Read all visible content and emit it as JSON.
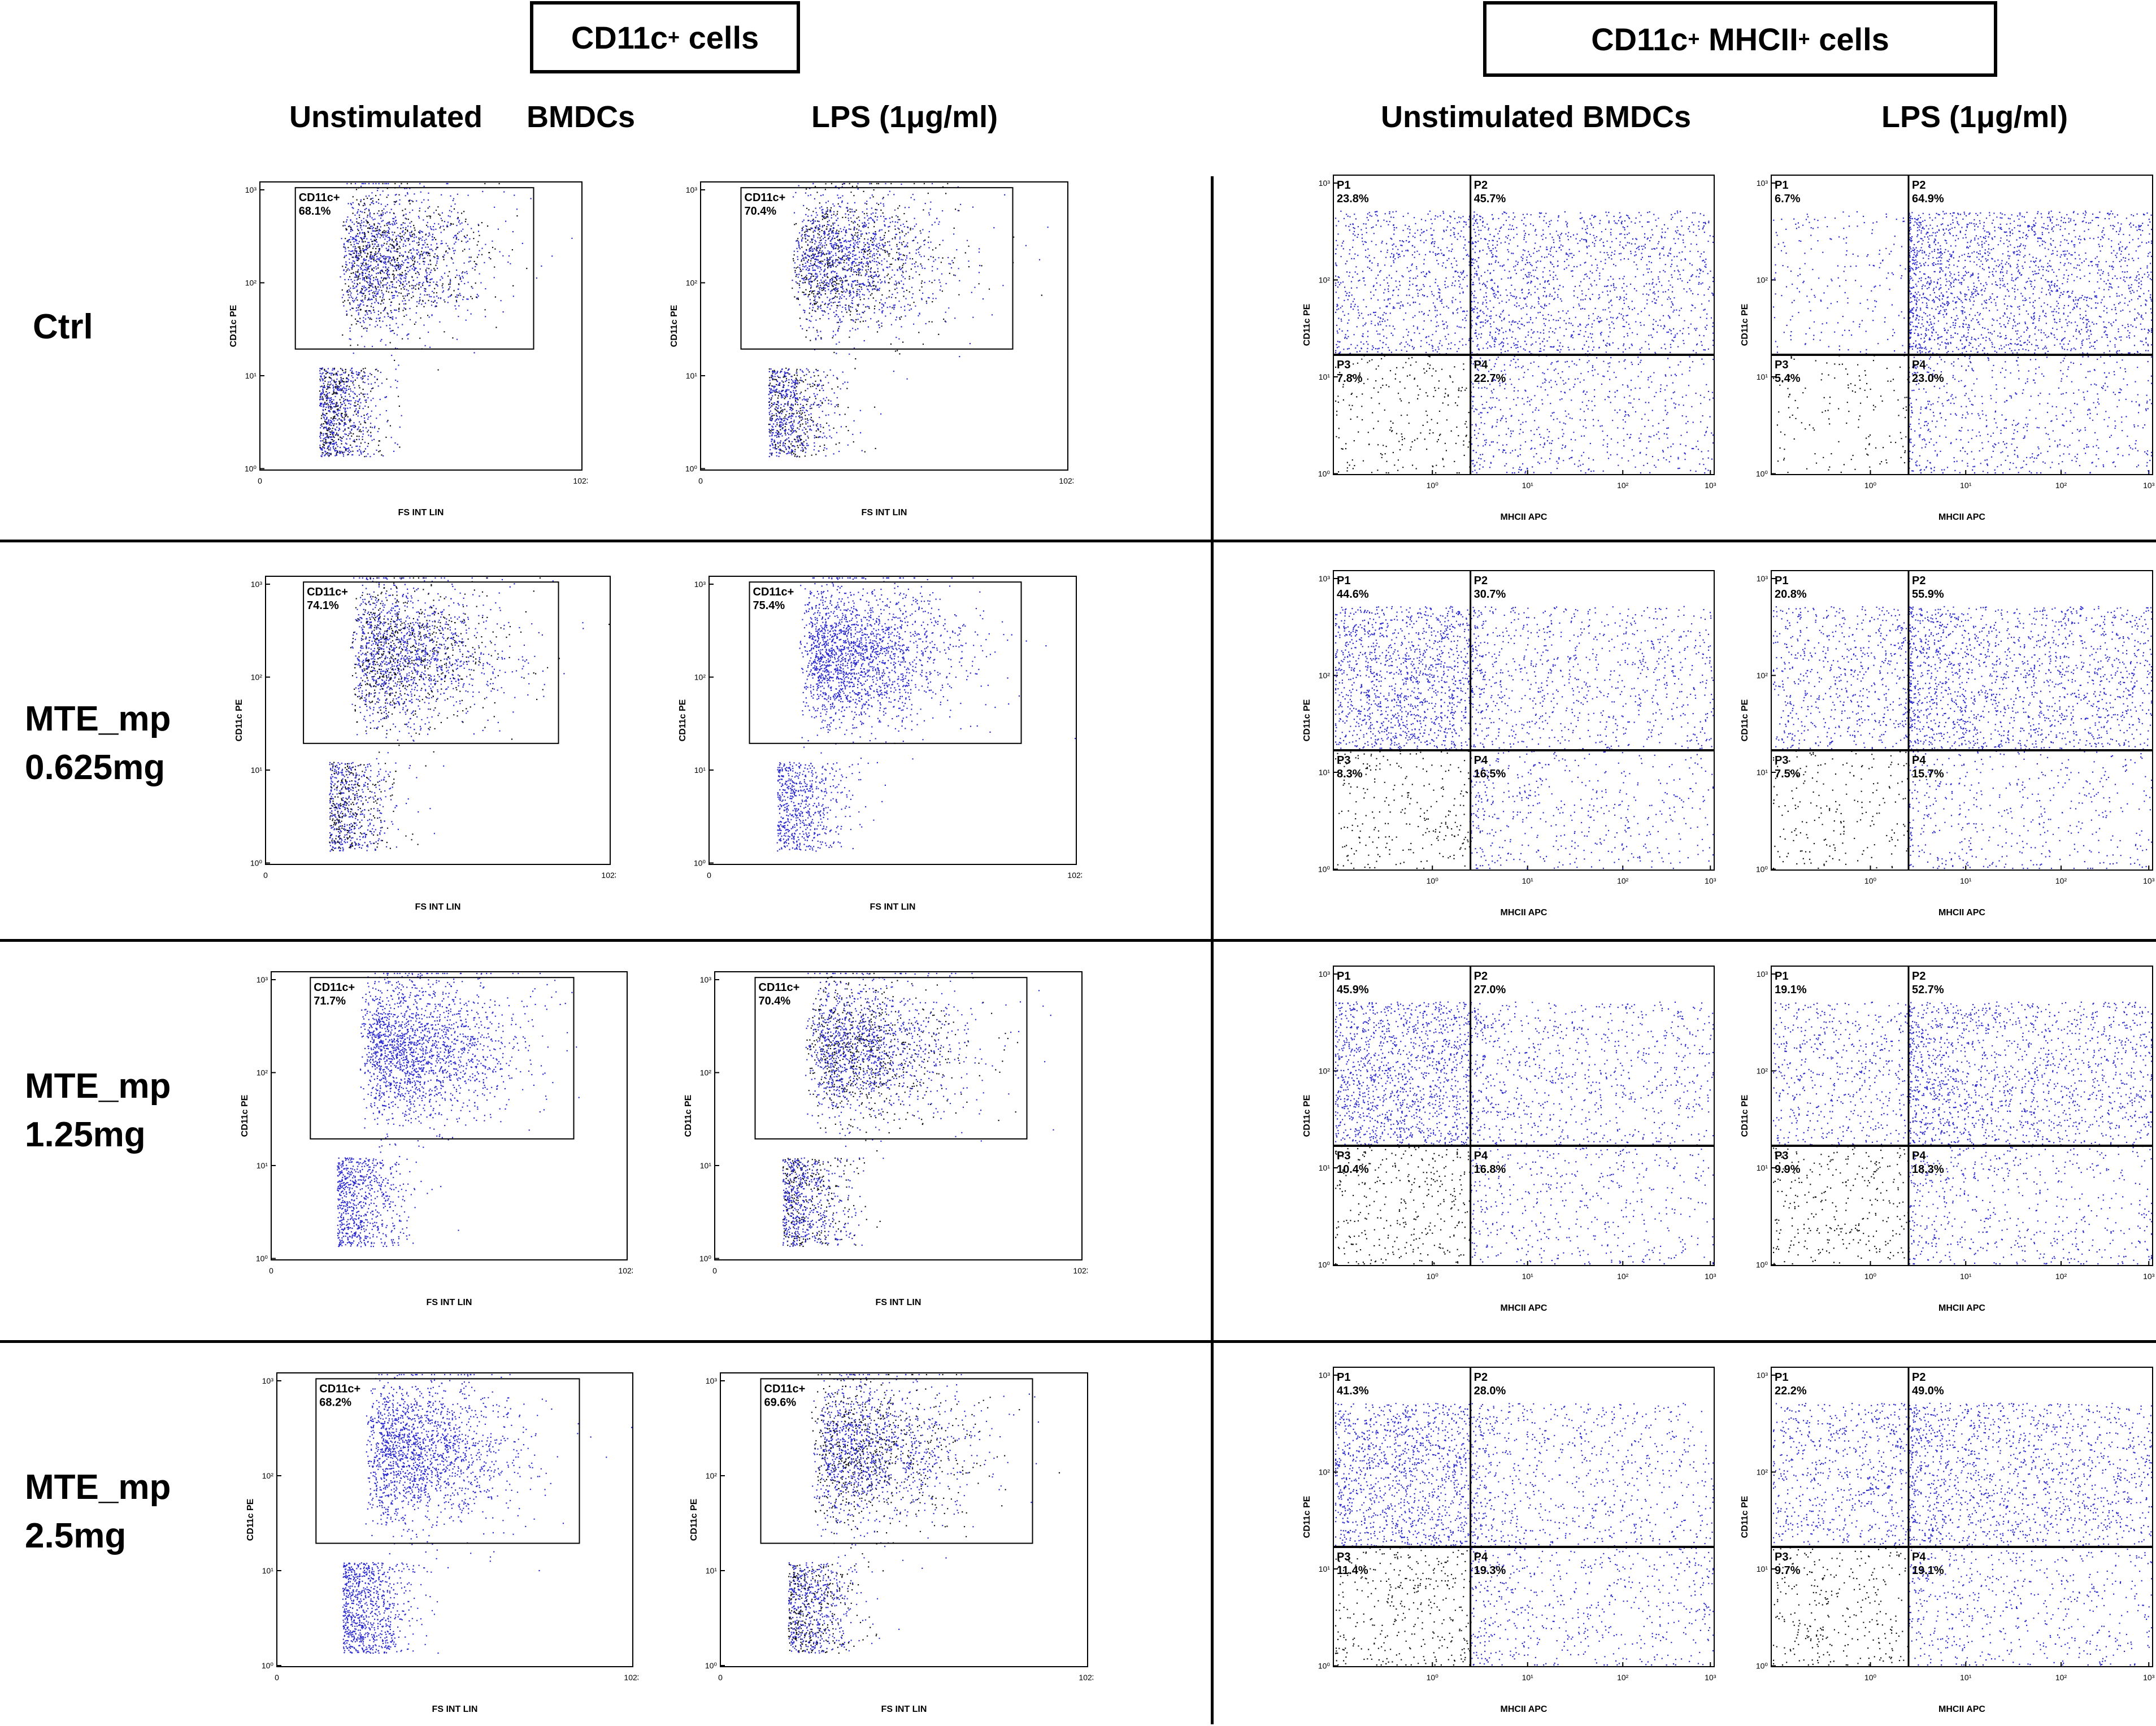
{
  "headers": {
    "left": {
      "text": "CD11c",
      "sup": "+",
      "suffix": " cells"
    },
    "right": {
      "text": "CD11c",
      "sup": "+",
      "middle": " MHCII",
      "sup2": "+",
      "suffix": " cells"
    }
  },
  "column_labels": {
    "unstim_left_a": "Unstimulated",
    "unstim_left_b": "BMDCs",
    "lps_left": "LPS (1μg/ml)",
    "unstim_right": "Unstimulated BMDCs",
    "lps_right": "LPS (1μg/ml)"
  },
  "rows": [
    {
      "line1": "Ctrl",
      "line2": ""
    },
    {
      "line1": "MTE_mp",
      "line2": "0.625mg"
    },
    {
      "line1": "MTE_mp",
      "line2": "1.25mg"
    },
    {
      "line1": "MTE_mp",
      "line2": "2.5mg"
    }
  ],
  "colors": {
    "gated": "#2a2ad0",
    "ungated": "#111111",
    "frame": "#000000"
  },
  "chart_data": [
    {
      "type": "scatter",
      "plot_kind": "gate",
      "xlabel": "FS INT LIN",
      "ylabel": "CD11c PE",
      "x_ticks": [
        "0",
        "1023"
      ],
      "y_ticks": [
        "10³",
        "10²",
        "10¹",
        "10⁰"
      ],
      "gate_label": "CD11c+",
      "panels": [
        {
          "row": 0,
          "condition": "Unstimulated BMDCs",
          "gate_percent": "68.1%"
        },
        {
          "row": 0,
          "condition": "LPS (1μg/ml)",
          "gate_percent": "70.4%"
        },
        {
          "row": 1,
          "condition": "Unstimulated BMDCs",
          "gate_percent": "74.1%"
        },
        {
          "row": 1,
          "condition": "LPS (1μg/ml)",
          "gate_percent": "75.4%"
        },
        {
          "row": 2,
          "condition": "Unstimulated BMDCs",
          "gate_percent": "71.7%"
        },
        {
          "row": 2,
          "condition": "LPS (1μg/ml)",
          "gate_percent": "70.4%"
        },
        {
          "row": 3,
          "condition": "Unstimulated BMDCs",
          "gate_percent": "68.2%"
        },
        {
          "row": 3,
          "condition": "LPS (1μg/ml)",
          "gate_percent": "69.6%"
        }
      ]
    },
    {
      "type": "scatter",
      "plot_kind": "quadrant",
      "xlabel": "MHCII APC",
      "ylabel": "CD11c PE",
      "x_ticks": [
        "10⁰",
        "10¹",
        "10²",
        "10³"
      ],
      "y_ticks": [
        "10³",
        "10²",
        "10¹",
        "10⁰"
      ],
      "quadrant_labels": [
        "P1",
        "P2",
        "P3",
        "P4"
      ],
      "panels": [
        {
          "row": 0,
          "condition": "Unstimulated BMDCs",
          "P1": "23.8%",
          "P2": "45.7%",
          "P3": "7.8%",
          "P4": "22.7%"
        },
        {
          "row": 0,
          "condition": "LPS (1μg/ml)",
          "P1": "6.7%",
          "P2": "64.9%",
          "P3": "5.4%",
          "P4": "23.0%"
        },
        {
          "row": 1,
          "condition": "Unstimulated BMDCs",
          "P1": "44.6%",
          "P2": "30.7%",
          "P3": "8.3%",
          "P4": "16.5%"
        },
        {
          "row": 1,
          "condition": "LPS (1μg/ml)",
          "P1": "20.8%",
          "P2": "55.9%",
          "P3": "7.5%",
          "P4": "15.7%"
        },
        {
          "row": 2,
          "condition": "Unstimulated BMDCs",
          "P1": "45.9%",
          "P2": "27.0%",
          "P3": "10.4%",
          "P4": "16.8%"
        },
        {
          "row": 2,
          "condition": "LPS (1μg/ml)",
          "P1": "19.1%",
          "P2": "52.7%",
          "P3": "9.9%",
          "P4": "18.3%"
        },
        {
          "row": 3,
          "condition": "Unstimulated BMDCs",
          "P1": "41.3%",
          "P2": "28.0%",
          "P3": "11.4%",
          "P4": "19.3%"
        },
        {
          "row": 3,
          "condition": "LPS (1μg/ml)",
          "P1": "22.2%",
          "P2": "49.0%",
          "P3": "9.7%",
          "P4": "19.1%"
        }
      ]
    }
  ]
}
